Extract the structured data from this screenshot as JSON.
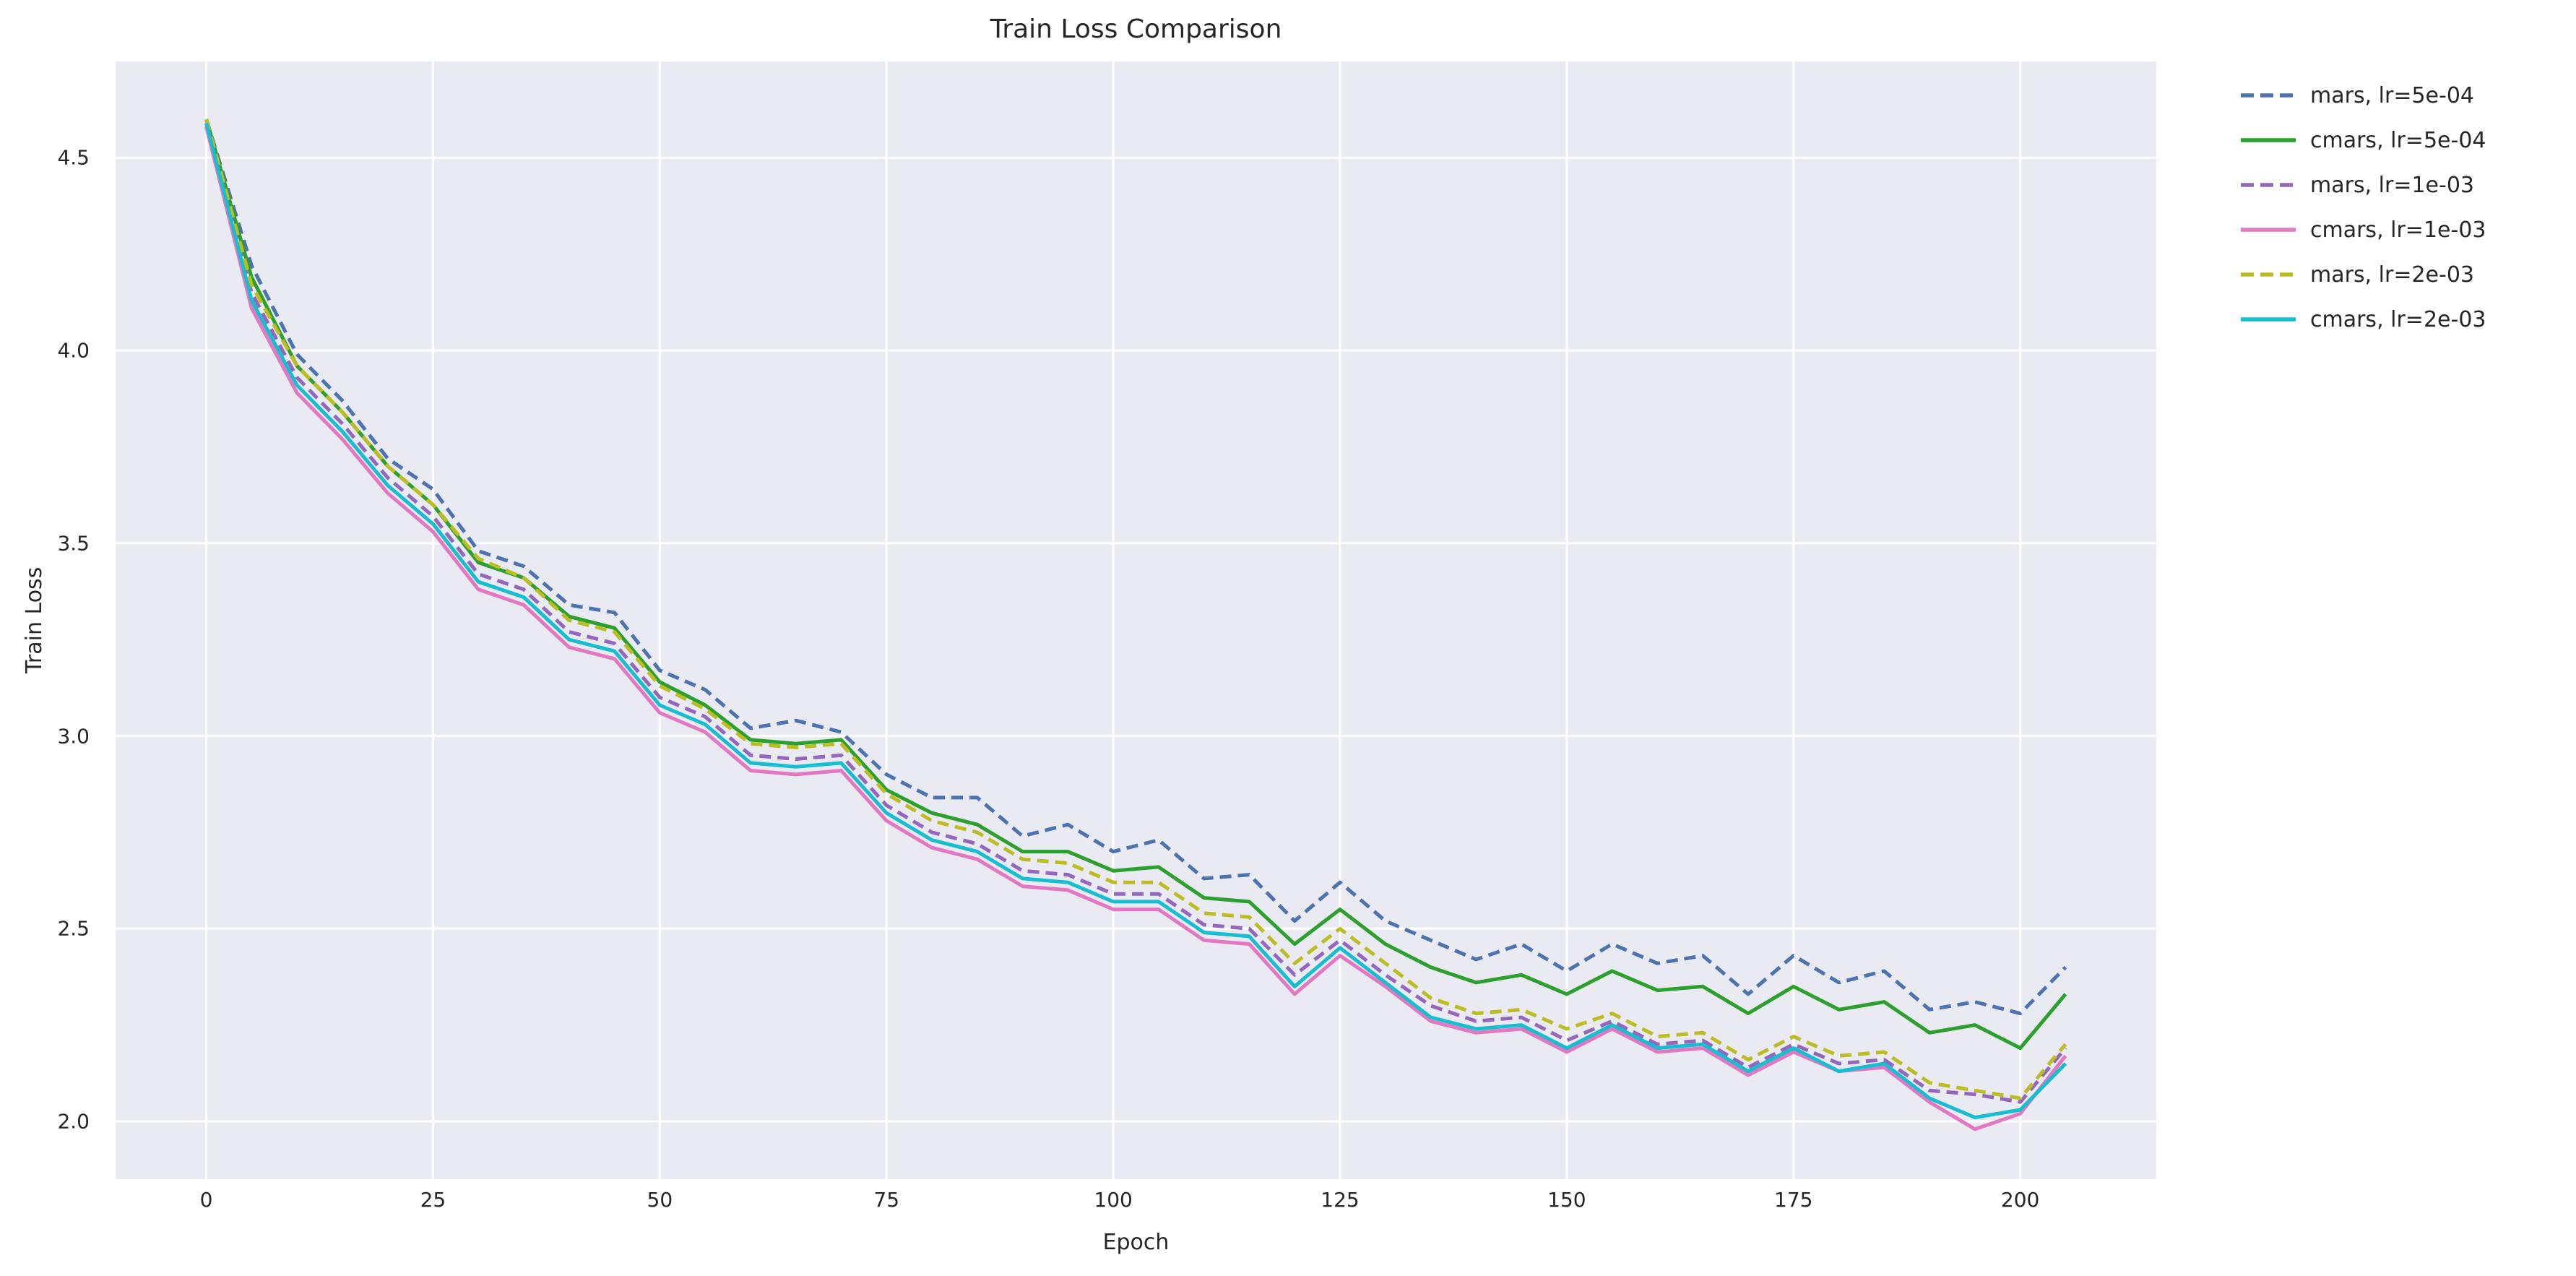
{
  "chart_data": {
    "type": "line",
    "title": "Train Loss Comparison",
    "xlabel": "Epoch",
    "ylabel": "Train Loss",
    "xlim": [
      -10,
      215
    ],
    "ylim": [
      1.85,
      4.75
    ],
    "xticks": [
      0,
      25,
      50,
      75,
      100,
      125,
      150,
      175,
      200
    ],
    "xtick_labels": [
      "0",
      "25",
      "50",
      "75",
      "100",
      "125",
      "150",
      "175",
      "200"
    ],
    "yticks": [
      2.0,
      2.5,
      3.0,
      3.5,
      4.0,
      4.5
    ],
    "ytick_labels": [
      "2.0",
      "2.5",
      "3.0",
      "3.5",
      "4.0",
      "4.5"
    ],
    "grid": true,
    "grid_color": "#FFFFFF",
    "axes_background": "#EAEAF2",
    "figure_background": "#FFFFFF",
    "legend_position": "outside-upper-right",
    "x": [
      0,
      5,
      10,
      15,
      20,
      25,
      30,
      35,
      40,
      45,
      50,
      55,
      60,
      65,
      70,
      75,
      80,
      85,
      90,
      95,
      100,
      105,
      110,
      115,
      120,
      125,
      130,
      135,
      140,
      145,
      150,
      155,
      160,
      165,
      170,
      175,
      180,
      185,
      190,
      195,
      200,
      205
    ],
    "series": [
      {
        "name": "mars, lr=5e-04",
        "color": "#4C72B0",
        "style": "dashed",
        "values": [
          4.6,
          4.22,
          3.99,
          3.87,
          3.72,
          3.64,
          3.48,
          3.44,
          3.34,
          3.32,
          3.17,
          3.12,
          3.02,
          3.04,
          3.01,
          2.9,
          2.84,
          2.84,
          2.74,
          2.77,
          2.7,
          2.73,
          2.63,
          2.64,
          2.52,
          2.62,
          2.52,
          2.47,
          2.42,
          2.46,
          2.39,
          2.46,
          2.41,
          2.43,
          2.33,
          2.43,
          2.36,
          2.39,
          2.29,
          2.31,
          2.28,
          2.4
        ]
      },
      {
        "name": "cmars, lr=5e-04",
        "color": "#2CA02C",
        "style": "solid",
        "values": [
          4.6,
          4.19,
          3.96,
          3.84,
          3.7,
          3.6,
          3.45,
          3.41,
          3.31,
          3.28,
          3.14,
          3.08,
          2.99,
          2.98,
          2.99,
          2.86,
          2.8,
          2.77,
          2.7,
          2.7,
          2.65,
          2.66,
          2.58,
          2.57,
          2.46,
          2.55,
          2.46,
          2.4,
          2.36,
          2.38,
          2.33,
          2.39,
          2.34,
          2.35,
          2.28,
          2.35,
          2.29,
          2.31,
          2.23,
          2.25,
          2.19,
          2.33
        ]
      },
      {
        "name": "mars, lr=1e-03",
        "color": "#9467BD",
        "style": "dashed",
        "values": [
          4.59,
          4.15,
          3.93,
          3.81,
          3.67,
          3.57,
          3.42,
          3.38,
          3.27,
          3.24,
          3.1,
          3.05,
          2.95,
          2.94,
          2.95,
          2.82,
          2.75,
          2.72,
          2.65,
          2.64,
          2.59,
          2.59,
          2.51,
          2.5,
          2.38,
          2.47,
          2.38,
          2.3,
          2.26,
          2.27,
          2.21,
          2.26,
          2.2,
          2.21,
          2.14,
          2.2,
          2.15,
          2.16,
          2.08,
          2.07,
          2.05,
          2.19
        ]
      },
      {
        "name": "cmars, lr=1e-03",
        "color": "#E377C2",
        "style": "solid",
        "values": [
          4.58,
          4.11,
          3.89,
          3.77,
          3.63,
          3.53,
          3.38,
          3.34,
          3.23,
          3.2,
          3.06,
          3.01,
          2.91,
          2.9,
          2.91,
          2.78,
          2.71,
          2.68,
          2.61,
          2.6,
          2.55,
          2.55,
          2.47,
          2.46,
          2.33,
          2.43,
          2.35,
          2.26,
          2.23,
          2.24,
          2.18,
          2.24,
          2.18,
          2.19,
          2.12,
          2.18,
          2.13,
          2.14,
          2.05,
          1.98,
          2.02,
          2.17
        ]
      },
      {
        "name": "mars, lr=2e-03",
        "color": "#BCBD22",
        "style": "dashed",
        "values": [
          4.6,
          4.17,
          3.96,
          3.84,
          3.7,
          3.6,
          3.46,
          3.41,
          3.3,
          3.27,
          3.13,
          3.07,
          2.98,
          2.97,
          2.98,
          2.85,
          2.78,
          2.75,
          2.68,
          2.67,
          2.62,
          2.62,
          2.54,
          2.53,
          2.41,
          2.5,
          2.41,
          2.32,
          2.28,
          2.29,
          2.24,
          2.28,
          2.22,
          2.23,
          2.16,
          2.22,
          2.17,
          2.18,
          2.1,
          2.08,
          2.06,
          2.2
        ]
      },
      {
        "name": "cmars, lr=2e-03",
        "color": "#17BECF",
        "style": "solid",
        "values": [
          4.59,
          4.13,
          3.91,
          3.79,
          3.65,
          3.55,
          3.4,
          3.36,
          3.25,
          3.22,
          3.08,
          3.03,
          2.93,
          2.92,
          2.93,
          2.8,
          2.73,
          2.7,
          2.63,
          2.62,
          2.57,
          2.57,
          2.49,
          2.48,
          2.35,
          2.45,
          2.36,
          2.27,
          2.24,
          2.25,
          2.19,
          2.25,
          2.19,
          2.2,
          2.13,
          2.19,
          2.13,
          2.15,
          2.06,
          2.01,
          2.03,
          2.15
        ]
      }
    ]
  }
}
